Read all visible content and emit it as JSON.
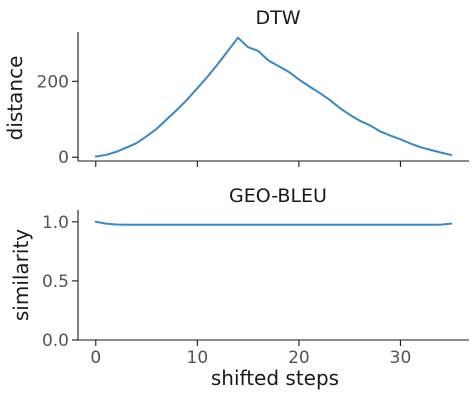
{
  "chart_data": [
    {
      "type": "line",
      "title": "DTW",
      "xlabel": "",
      "ylabel": "distance",
      "xlim": [
        -1.75,
        36.75
      ],
      "ylim": [
        -10,
        330
      ],
      "xticks": [
        0,
        10,
        20,
        30
      ],
      "xtick_labels_visible": false,
      "yticks": [
        0,
        200
      ],
      "ytick_labels": [
        "0",
        "200"
      ],
      "grid": false,
      "color": "#3b87c4",
      "series": [
        {
          "x": [
            0,
            1,
            2,
            3,
            4,
            5,
            6,
            7,
            8,
            9,
            10,
            11,
            12,
            13,
            14,
            15,
            16,
            17,
            18,
            19,
            20,
            21,
            22,
            23,
            24,
            25,
            26,
            27,
            28,
            29,
            30,
            31,
            32,
            33,
            34,
            35
          ],
          "values": [
            2,
            6,
            14,
            25,
            37,
            55,
            75,
            100,
            125,
            152,
            182,
            212,
            245,
            280,
            315,
            290,
            280,
            255,
            240,
            225,
            205,
            187,
            170,
            152,
            130,
            112,
            96,
            84,
            68,
            57,
            47,
            36,
            26,
            19,
            12,
            6
          ]
        }
      ]
    },
    {
      "type": "line",
      "title": "GEO-BLEU",
      "xlabel": "shifted steps",
      "ylabel": "similarity",
      "xlim": [
        -1.75,
        36.75
      ],
      "ylim": [
        0.0,
        1.1
      ],
      "xticks": [
        0,
        10,
        20,
        30
      ],
      "xtick_labels": [
        "0",
        "10",
        "20",
        "30"
      ],
      "yticks": [
        0.0,
        0.5,
        1.0
      ],
      "ytick_labels": [
        "0.0",
        "0.5",
        "1.0"
      ],
      "grid": false,
      "color": "#3b87c4",
      "series": [
        {
          "x": [
            0,
            1,
            2,
            3,
            4,
            5,
            6,
            7,
            8,
            9,
            10,
            11,
            12,
            13,
            14,
            15,
            16,
            17,
            18,
            19,
            20,
            21,
            22,
            23,
            24,
            25,
            26,
            27,
            28,
            29,
            30,
            31,
            32,
            33,
            34,
            35
          ],
          "values": [
            1.0,
            0.985,
            0.977,
            0.975,
            0.975,
            0.975,
            0.975,
            0.975,
            0.975,
            0.975,
            0.975,
            0.975,
            0.975,
            0.975,
            0.975,
            0.975,
            0.975,
            0.975,
            0.975,
            0.975,
            0.975,
            0.975,
            0.975,
            0.975,
            0.975,
            0.975,
            0.975,
            0.975,
            0.975,
            0.975,
            0.975,
            0.975,
            0.975,
            0.975,
            0.976,
            0.985
          ]
        }
      ]
    }
  ]
}
